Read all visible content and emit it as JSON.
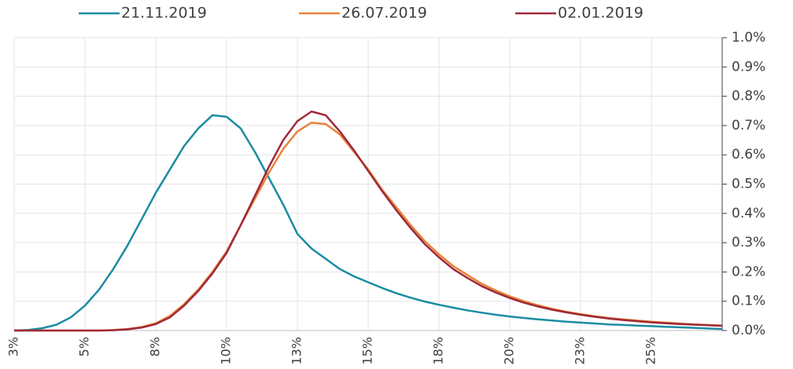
{
  "chart_data": {
    "type": "line",
    "x": [
      2.5,
      3,
      3.5,
      4,
      4.5,
      5,
      5.5,
      6,
      6.5,
      7,
      7.5,
      8,
      8.5,
      9,
      9.5,
      10,
      10.5,
      11,
      11.5,
      12,
      12.5,
      13,
      13.5,
      14,
      14.5,
      15,
      15.5,
      16,
      16.5,
      17,
      17.5,
      18,
      18.5,
      19,
      19.5,
      20,
      20.5,
      21,
      21.5,
      22,
      22.5,
      23,
      23.5,
      24,
      24.5,
      25,
      25.5,
      26,
      26.5,
      27,
      27.5
    ],
    "series": [
      {
        "name": "21.11.2019",
        "color": "#1b8ca3",
        "values": [
          0,
          0.002,
          0.008,
          0.02,
          0.045,
          0.085,
          0.14,
          0.21,
          0.29,
          0.38,
          0.47,
          0.55,
          0.63,
          0.69,
          0.735,
          0.73,
          0.69,
          0.61,
          0.52,
          0.43,
          0.33,
          0.28,
          0.245,
          0.21,
          0.185,
          0.165,
          0.145,
          0.127,
          0.112,
          0.099,
          0.088,
          0.078,
          0.069,
          0.061,
          0.054,
          0.048,
          0.043,
          0.038,
          0.034,
          0.03,
          0.027,
          0.024,
          0.021,
          0.019,
          0.017,
          0.015,
          0.013,
          0.011,
          0.009,
          0.007,
          0.005
        ]
      },
      {
        "name": "26.07.2019",
        "color": "#e8833a",
        "values": [
          0,
          0,
          0,
          0,
          0,
          0,
          0,
          0.002,
          0.005,
          0.012,
          0.025,
          0.05,
          0.09,
          0.14,
          0.2,
          0.27,
          0.36,
          0.45,
          0.54,
          0.62,
          0.68,
          0.71,
          0.705,
          0.67,
          0.61,
          0.55,
          0.48,
          0.42,
          0.36,
          0.305,
          0.26,
          0.22,
          0.19,
          0.16,
          0.137,
          0.117,
          0.1,
          0.086,
          0.074,
          0.064,
          0.056,
          0.049,
          0.043,
          0.038,
          0.034,
          0.03,
          0.027,
          0.024,
          0.021,
          0.019,
          0.017
        ]
      },
      {
        "name": "02.01.2019",
        "color": "#9e2a3a",
        "values": [
          0,
          0,
          0,
          0,
          0,
          0,
          0,
          0.001,
          0.004,
          0.01,
          0.022,
          0.045,
          0.085,
          0.135,
          0.195,
          0.265,
          0.36,
          0.46,
          0.56,
          0.65,
          0.715,
          0.748,
          0.735,
          0.68,
          0.615,
          0.545,
          0.475,
          0.41,
          0.35,
          0.295,
          0.25,
          0.21,
          0.18,
          0.152,
          0.13,
          0.111,
          0.095,
          0.082,
          0.071,
          0.062,
          0.054,
          0.047,
          0.041,
          0.036,
          0.032,
          0.028,
          0.025,
          0.022,
          0.02,
          0.018,
          0.016
        ]
      }
    ],
    "xlim": [
      2.5,
      27.5
    ],
    "xticks": [
      {
        "value": 2.5,
        "label": "3%"
      },
      {
        "value": 5,
        "label": "5%"
      },
      {
        "value": 7.5,
        "label": "8%"
      },
      {
        "value": 10,
        "label": "10%"
      },
      {
        "value": 12.5,
        "label": "13%"
      },
      {
        "value": 15,
        "label": "15%"
      },
      {
        "value": 17.5,
        "label": "18%"
      },
      {
        "value": 20,
        "label": "20%"
      },
      {
        "value": 22.5,
        "label": "23%"
      },
      {
        "value": 25,
        "label": "25%"
      }
    ],
    "ylim": [
      0,
      1
    ],
    "yticks": [
      {
        "value": 0,
        "label": "0.0%"
      },
      {
        "value": 0.1,
        "label": "0.1%"
      },
      {
        "value": 0.2,
        "label": "0.2%"
      },
      {
        "value": 0.3,
        "label": "0.3%"
      },
      {
        "value": 0.4,
        "label": "0.4%"
      },
      {
        "value": 0.5,
        "label": "0.5%"
      },
      {
        "value": 0.6,
        "label": "0.6%"
      },
      {
        "value": 0.7,
        "label": "0.7%"
      },
      {
        "value": 0.8,
        "label": "0.8%"
      },
      {
        "value": 0.9,
        "label": "0.9%"
      },
      {
        "value": 1,
        "label": "1.0%"
      }
    ],
    "grid": true,
    "legend": "top"
  }
}
